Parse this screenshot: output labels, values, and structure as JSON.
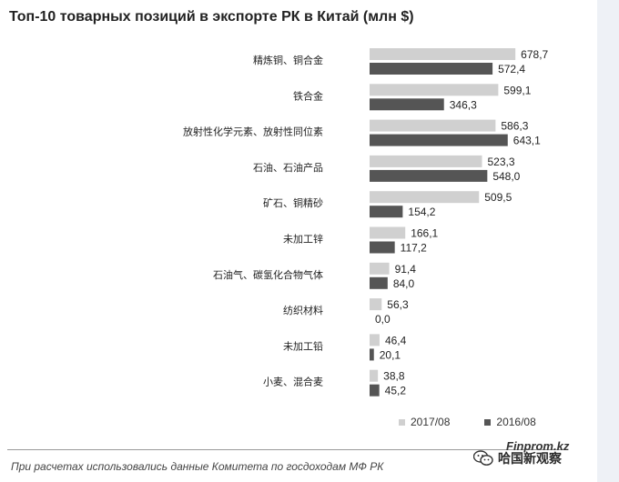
{
  "chart_data": {
    "type": "bar",
    "orientation": "horizontal",
    "title": "Топ-10 товарных позиций в экспорте РК в Китай (млн $)",
    "categories": [
      "精炼铜、铜合金",
      "铁合金",
      "放射性化学元素、放射性同位素",
      "石油、石油产品",
      "矿石、铜精砂",
      "未加工锌",
      "石油气、碳氢化合物气体",
      "纺织材料",
      "未加工铅",
      "小麦、混合麦"
    ],
    "series": [
      {
        "name": "2017/08",
        "color": "#d0d0d0",
        "values": [
          678.7,
          599.1,
          586.3,
          523.3,
          509.5,
          166.1,
          91.4,
          56.3,
          46.4,
          38.8
        ],
        "labels": [
          "678,7",
          "599,1",
          "586,3",
          "523,3",
          "509,5",
          "166,1",
          "91,4",
          "56,3",
          "46,4",
          "38,8"
        ]
      },
      {
        "name": "2016/08",
        "color": "#555555",
        "values": [
          572.4,
          346.3,
          643.1,
          548.0,
          154.2,
          117.2,
          84.0,
          0.0,
          20.1,
          45.2
        ],
        "labels": [
          "572,4",
          "346,3",
          "643,1",
          "548,0",
          "154,2",
          "117,2",
          "84,0",
          "0,0",
          "20,1",
          "45,2"
        ]
      }
    ],
    "xlim": [
      0,
      700
    ],
    "grid": false,
    "legend_position": "bottom-right"
  },
  "footer": {
    "source": "При расчетах использовались данные Комитета по госдоходам МФ РК",
    "brand": "Finprom.kz",
    "wechat_account": "哈国新观察"
  }
}
